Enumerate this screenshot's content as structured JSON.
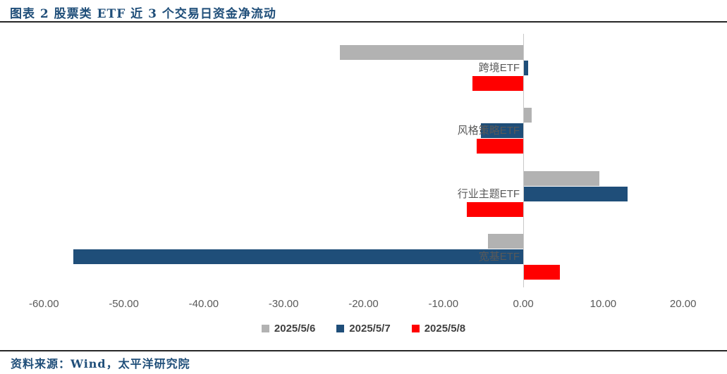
{
  "header": {
    "title": "图表 2  股票类 ETF 近 3 个交易日资金净流动"
  },
  "footer": {
    "source": "资料来源：Wind，太平洋研究院"
  },
  "colors": {
    "title_text": "#1F4E79",
    "source_text": "#1F4E79",
    "axis_text": "#595959",
    "legend_text": "#404040",
    "zero_line": "#C9C9C9",
    "rule": "#262626",
    "series_gray": "#B2B2B2",
    "series_blue": "#1F4E79",
    "series_red": "#FF0000"
  },
  "chart_data": {
    "type": "bar",
    "orientation": "horizontal",
    "title": "图表 2 股票类 ETF 近 3 个交易日资金净流动",
    "xlabel": "",
    "ylabel": "",
    "categories": [
      "跨境ETF",
      "风格策略ETF",
      "行业主题ETF",
      "宽基ETF"
    ],
    "series": [
      {
        "name": "2025/5/6",
        "color": "#B2B2B2",
        "values": [
          -23.0,
          1.0,
          9.4,
          -4.4
        ]
      },
      {
        "name": "2025/5/7",
        "color": "#1F4E79",
        "values": [
          0.5,
          -5.3,
          13.0,
          -56.3
        ]
      },
      {
        "name": "2025/5/8",
        "color": "#FF0000",
        "values": [
          -6.4,
          -5.8,
          -7.1,
          4.5
        ]
      }
    ],
    "xlim": [
      -60,
      20
    ],
    "xticks": [
      -60,
      -50,
      -40,
      -30,
      -20,
      -10,
      0,
      10,
      20
    ],
    "xtick_labels": [
      "-60.00",
      "-50.00",
      "-40.00",
      "-30.00",
      "-20.00",
      "-10.00",
      "0.00",
      "10.00",
      "20.00"
    ],
    "grid": false,
    "legend_position": "bottom"
  }
}
